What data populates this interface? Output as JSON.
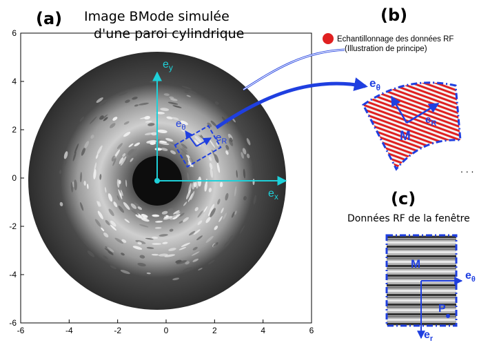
{
  "panel_a": {
    "label": "(a)",
    "title_line1": "Image BMode simulée",
    "title_line2": "d'une paroi cylindrique",
    "x_ticks": [
      "-6",
      "-4",
      "-2",
      "0",
      "2",
      "4",
      "6"
    ],
    "y_ticks": [
      "6",
      "4",
      "2",
      "0",
      "-2",
      "-4",
      "-6"
    ],
    "axis_ex": "e",
    "axis_ex_sub": "x",
    "axis_ey": "e",
    "axis_ey_sub": "y",
    "axis_etheta": "e",
    "axis_etheta_sub": "θ",
    "axis_eR": "e",
    "axis_eR_sub": "R"
  },
  "panel_b": {
    "label": "(b)",
    "legend_line1": "Echantillonnage des données RF",
    "legend_line2": "(Illustration de principe)",
    "etheta": "e",
    "etheta_sub": "θ",
    "eR": "e",
    "eR_sub": "R",
    "point": "M",
    "dots": ". . ."
  },
  "panel_c": {
    "label": "(c)",
    "title": "Données RF de la fenêtre",
    "point_m": "M",
    "point_p": "P",
    "etheta": "e",
    "etheta_sub": "θ",
    "er": "e",
    "er_sub": "r"
  },
  "colors": {
    "cyan": "#1ed0d8",
    "blue": "#1f3fe0",
    "red": "#e02020",
    "ring_dark": "#2b2b2b"
  }
}
